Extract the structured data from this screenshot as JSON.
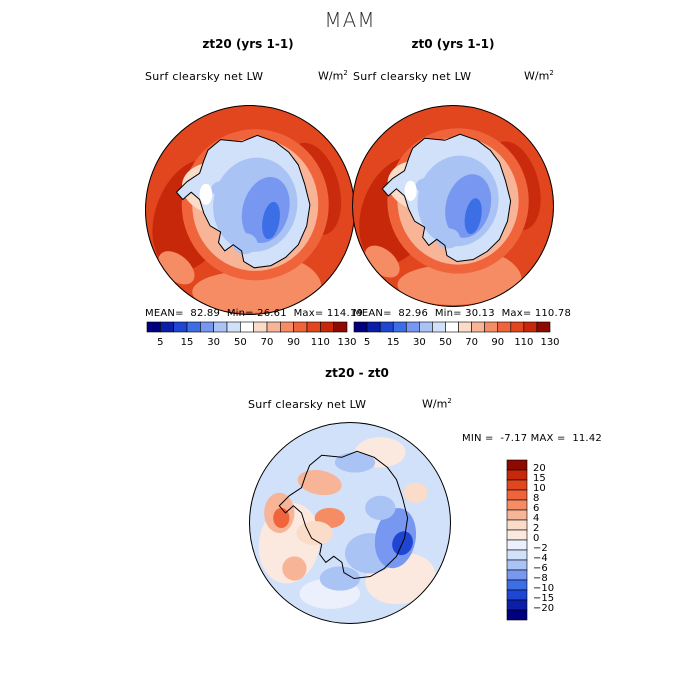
{
  "page": {
    "suptitle": "MAM"
  },
  "colors": {
    "abs_scale": [
      "#00007f",
      "#0a1ea8",
      "#1e46d2",
      "#3c6ee6",
      "#7897f0",
      "#aac3f5",
      "#d2e1fa",
      "#ffffff",
      "#fadcc8",
      "#f7b496",
      "#f58c64",
      "#f0643c",
      "#e1461e",
      "#c8280a",
      "#8c0a00"
    ],
    "diff_scale": [
      "#00007f",
      "#0a1ea8",
      "#1e46d2",
      "#3c6ee6",
      "#7897f0",
      "#aac3f5",
      "#d2e1fa",
      "#ebf0fc",
      "#fbe9df",
      "#fadcc8",
      "#f7b496",
      "#f58c64",
      "#f0643c",
      "#e1461e",
      "#c8280a",
      "#8c0a00"
    ]
  },
  "chart_data": [
    {
      "type": "heatmap",
      "title": "zt20 (yrs 1-1)",
      "variable": "Surf clearsky net LW",
      "units": "W/m",
      "units_sup": "2",
      "stats": {
        "mean_label": "MEAN=",
        "mean": "82.89",
        "min_label": "Min=",
        "min": "26.61",
        "max_label": "Max=",
        "max": "114.19"
      },
      "colorbar_ticks": [
        "5",
        "15",
        "30",
        "50",
        "70",
        "90",
        "110",
        "130"
      ],
      "projection": "south polar stereographic"
    },
    {
      "type": "heatmap",
      "title": "zt0 (yrs 1-1)",
      "variable": "Surf clearsky net LW",
      "units": "W/m",
      "units_sup": "2",
      "stats": {
        "mean_label": "MEAN=",
        "mean": "82.96",
        "min_label": "Min=",
        "min": "30.13",
        "max_label": "Max=",
        "max": "110.78"
      },
      "colorbar_ticks": [
        "5",
        "15",
        "30",
        "50",
        "70",
        "90",
        "110",
        "130"
      ],
      "projection": "south polar stereographic"
    },
    {
      "type": "heatmap",
      "title": "zt20 - zt0",
      "variable": "Surf clearsky net LW",
      "units": "W/m",
      "units_sup": "2",
      "stats": {
        "min_label": "MIN =",
        "min": "-7.17",
        "max_label": "MAX =",
        "max": "11.42"
      },
      "colorbar_ticks": [
        "20",
        "15",
        "10",
        "8",
        "6",
        "4",
        "2",
        "0",
        "−2",
        "−4",
        "−6",
        "−8",
        "−10",
        "−15",
        "−20"
      ],
      "projection": "south polar stereographic"
    }
  ]
}
